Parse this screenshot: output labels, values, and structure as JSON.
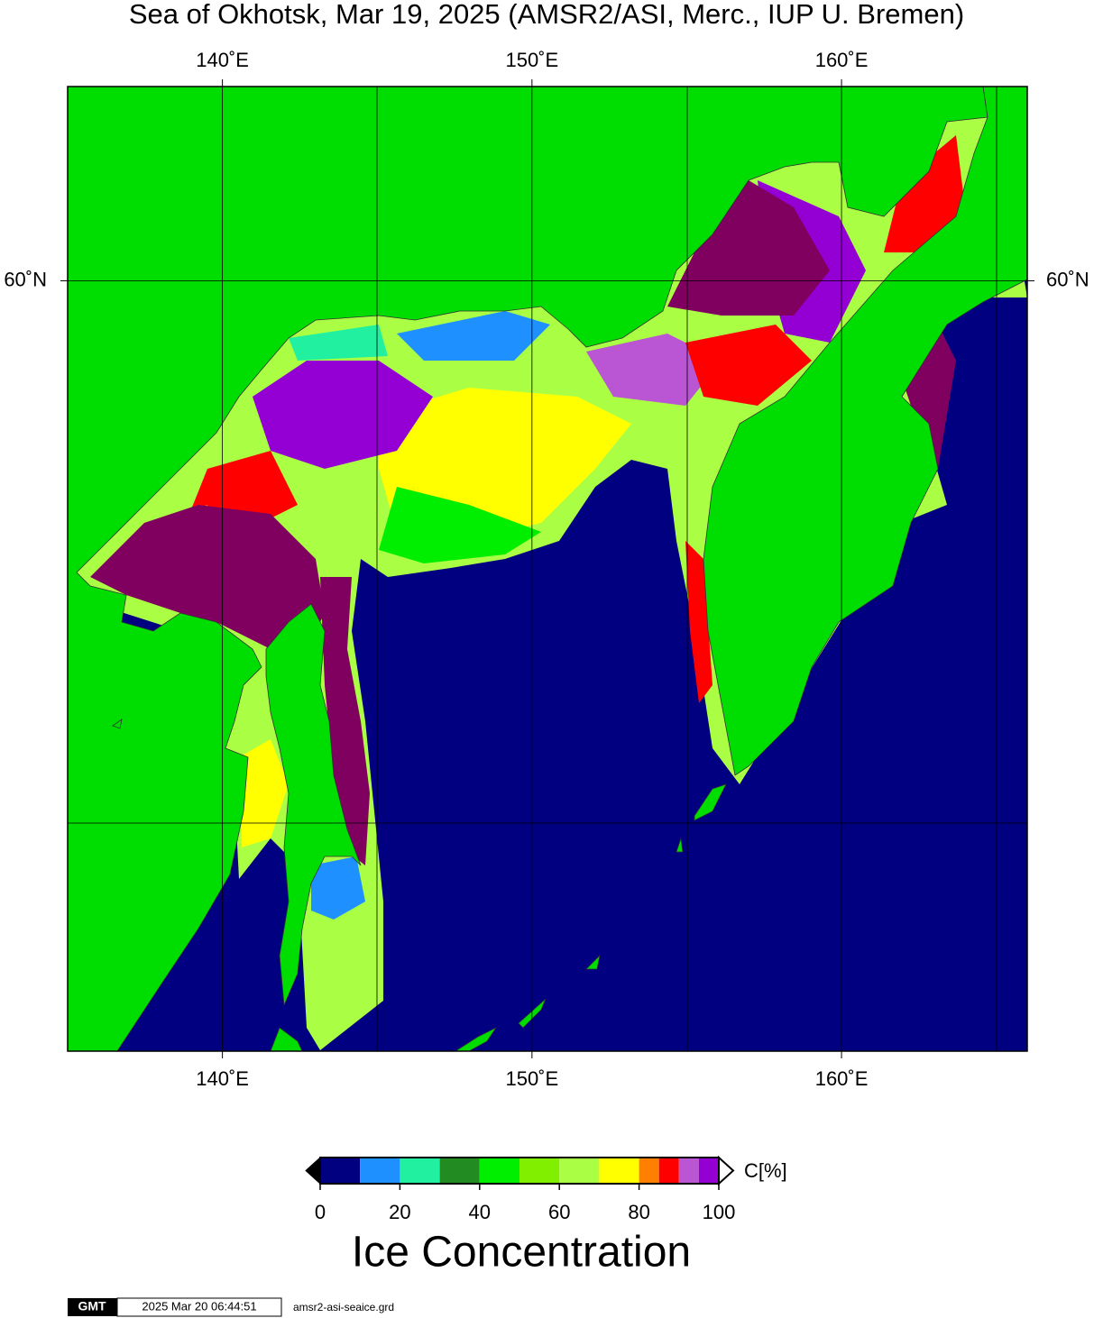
{
  "title": "Sea of Okhotsk, Mar 19, 2025 (AMSR2/ASI, Merc., IUP U. Bremen)",
  "map": {
    "lon_range": [
      135,
      166
    ],
    "lat_range": [
      45,
      63
    ],
    "lon_ticks": [
      {
        "value": 140,
        "label": "140˚E"
      },
      {
        "value": 150,
        "label": "150˚E"
      },
      {
        "value": 160,
        "label": "160˚E"
      }
    ],
    "lat_ticks": [
      {
        "value": 60,
        "label": "60˚N"
      }
    ]
  },
  "colorbar": {
    "bounds": [
      0,
      10,
      20,
      30,
      40,
      50,
      60,
      70,
      80,
      85,
      90,
      95,
      100
    ],
    "colors": [
      "#000080",
      "#1e90ff",
      "#20f0a0",
      "#228b22",
      "#00ee00",
      "#80f000",
      "#aaff44",
      "#ffff00",
      "#ff8000",
      "#ff0000",
      "#ba55d3",
      "#9400d3"
    ],
    "ticks": [
      0,
      20,
      40,
      60,
      80,
      100
    ],
    "unit_label": "C[%]",
    "title": "Ice Concentration"
  },
  "footer": {
    "logo": "GMT",
    "timestamp": "2025 Mar 20 06:44:51",
    "source_file": "amsr2-asi-seaice.grd"
  }
}
